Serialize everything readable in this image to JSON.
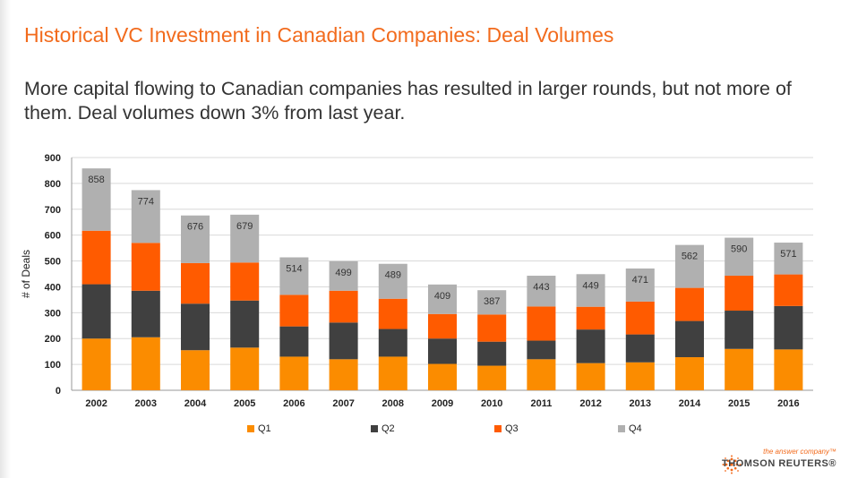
{
  "header": {
    "title": "Historical VC Investment in Canadian Companies: Deal Volumes",
    "subtitle": "More capital flowing to Canadian companies has resulted in larger rounds, but not more of them. Deal volumes down 3% from last year."
  },
  "logo": {
    "tagline": "the answer company™",
    "name": "THOMSON REUTERS®",
    "icon": "thomson-reuters-dot-globe-icon"
  },
  "chart_data": {
    "type": "bar",
    "stacked": true,
    "categories": [
      "2002",
      "2003",
      "2004",
      "2005",
      "2006",
      "2007",
      "2008",
      "2009",
      "2010",
      "2011",
      "2012",
      "2013",
      "2014",
      "2015",
      "2016"
    ],
    "series": [
      {
        "name": "Q1",
        "color": "#fb8c00",
        "values": [
          200,
          205,
          155,
          165,
          130,
          120,
          130,
          102,
          95,
          120,
          105,
          108,
          128,
          160,
          158
        ]
      },
      {
        "name": "Q2",
        "color": "#404040",
        "values": [
          210,
          180,
          180,
          182,
          117,
          142,
          107,
          98,
          93,
          72,
          130,
          108,
          140,
          148,
          168
        ]
      },
      {
        "name": "Q3",
        "color": "#ff5b00",
        "values": [
          207,
          185,
          157,
          147,
          122,
          123,
          117,
          95,
          105,
          132,
          88,
          127,
          128,
          135,
          122
        ]
      },
      {
        "name": "Q4",
        "color": "#b0b0b0",
        "values": [
          241,
          204,
          184,
          185,
          145,
          114,
          135,
          114,
          94,
          119,
          126,
          128,
          166,
          147,
          123
        ]
      }
    ],
    "totals": [
      858,
      774,
      676,
      679,
      514,
      499,
      489,
      409,
      387,
      443,
      449,
      471,
      562,
      590,
      571
    ],
    "ylabel": "# of Deals",
    "xlabel": "",
    "ylim": [
      0,
      900
    ],
    "yticks": [
      0,
      100,
      200,
      300,
      400,
      500,
      600,
      700,
      800,
      900
    ],
    "grid": true,
    "legend_position": "bottom"
  }
}
